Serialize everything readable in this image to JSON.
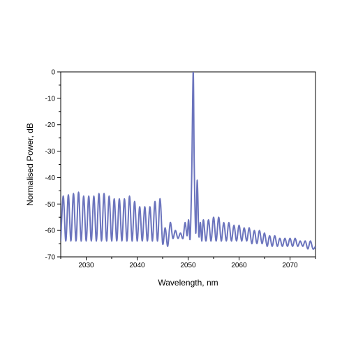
{
  "chart_data": {
    "type": "line",
    "title": "",
    "xlabel": "Wavelength, nm",
    "ylabel": "Normalised Power, dB",
    "xlim": [
      2025,
      2075
    ],
    "ylim": [
      -70,
      0
    ],
    "grid": false,
    "legend": "none",
    "line_color": "#6b74bd",
    "x_ticks": [
      "2030",
      "2040",
      "2050",
      "2060",
      "2070"
    ],
    "y_ticks": [
      "0",
      "-10",
      "-20",
      "-30",
      "-40",
      "-50",
      "-60",
      "-70"
    ],
    "series": [
      {
        "x": [
          2025.0,
          2025.5,
          2026.0,
          2026.5,
          2027.0,
          2027.5,
          2028.0,
          2028.5,
          2029.0,
          2029.5,
          2030.0,
          2030.5,
          2031.0,
          2031.5,
          2032.0,
          2032.5,
          2033.0,
          2033.5,
          2034.0,
          2034.5,
          2035.0,
          2035.5,
          2036.0,
          2036.5,
          2037.0,
          2037.5,
          2038.0,
          2038.5,
          2039.0,
          2039.5,
          2040.0,
          2040.5,
          2041.0,
          2041.5,
          2042.0,
          2042.5,
          2043.0,
          2043.5,
          2044.0,
          2044.5,
          2045.0,
          2045.5,
          2046.0,
          2046.5,
          2047.0,
          2047.5,
          2048.0,
          2048.5,
          2049.0,
          2049.4,
          2049.8,
          2050.1,
          2050.4,
          2050.7,
          2051.0,
          2051.2,
          2051.5,
          2051.8,
          2052.1,
          2052.4,
          2052.7,
          2053.0,
          2053.5,
          2054.0,
          2054.5,
          2055.0,
          2055.5,
          2056.0,
          2056.5,
          2057.0,
          2057.5,
          2058.0,
          2058.5,
          2059.0,
          2059.5,
          2060.0,
          2060.5,
          2061.0,
          2061.5,
          2062.0,
          2062.5,
          2063.0,
          2063.5,
          2064.0,
          2064.5,
          2065.0,
          2065.5,
          2066.0,
          2066.5,
          2067.0,
          2067.5,
          2068.0,
          2068.5,
          2069.0,
          2069.5,
          2070.0,
          2070.5,
          2071.0,
          2071.5,
          2072.0,
          2072.5,
          2073.0,
          2073.5,
          2074.0,
          2074.5,
          2075.0
        ],
        "y": [
          -64,
          -47,
          -64,
          -46.5,
          -64,
          -46,
          -64,
          -45.5,
          -64,
          -47,
          -64,
          -47,
          -64,
          -47,
          -64,
          -46,
          -64,
          -46,
          -64,
          -47,
          -64,
          -48,
          -64,
          -48,
          -64,
          -48,
          -64,
          -47,
          -64,
          -49,
          -64,
          -51,
          -64,
          -51,
          -64,
          -51,
          -64,
          -49,
          -64,
          -48,
          -65,
          -59,
          -66,
          -57,
          -63,
          -60,
          -63,
          -61,
          -63,
          -57,
          -62,
          -56,
          -63,
          -40,
          0,
          -35,
          -61,
          -41,
          -62,
          -57,
          -64,
          -56,
          -64,
          -56,
          -64,
          -55,
          -64,
          -55,
          -64,
          -57,
          -64,
          -57,
          -64,
          -58,
          -64,
          -58,
          -64,
          -59,
          -64,
          -59,
          -65,
          -60,
          -65,
          -60,
          -65,
          -61,
          -66,
          -62,
          -66,
          -62,
          -66,
          -63,
          -66,
          -63,
          -66,
          -63,
          -66,
          -63,
          -66,
          -64,
          -66,
          -64,
          -67,
          -64,
          -67,
          -66
        ]
      }
    ]
  }
}
